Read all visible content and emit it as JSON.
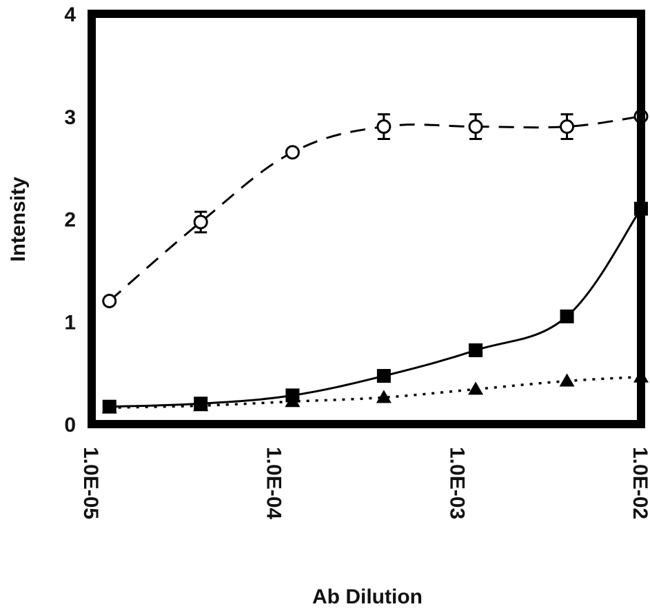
{
  "chart_data": {
    "type": "line",
    "xscale": "log",
    "xlabel": "Ab Dilution",
    "ylabel": "Intensity",
    "xlim": [
      1e-05,
      0.01
    ],
    "ylim": [
      0,
      4
    ],
    "x_ticks": [
      1e-05,
      0.0001,
      0.001,
      0.01
    ],
    "x_tick_labels": [
      "1.0E-05",
      "1.0E-04",
      "1.0E-03",
      "1.0E-02"
    ],
    "y_ticks": [
      0,
      1,
      2,
      3,
      4
    ],
    "y_tick_labels": [
      "0",
      "1",
      "2",
      "3",
      "4"
    ],
    "grid": false,
    "series": [
      {
        "marker": "open-circle",
        "line_style": "dashed",
        "color": "#000000",
        "x": [
          1.25e-05,
          3.94e-05,
          0.000125,
          0.000394,
          0.00125,
          0.00394,
          0.01
        ],
        "y": [
          1.2,
          1.97,
          2.65,
          2.9,
          2.9,
          2.9,
          3.0
        ],
        "error": [
          0,
          0.1,
          0,
          0.12,
          0.12,
          0.12,
          0
        ]
      },
      {
        "marker": "filled-square",
        "line_style": "solid",
        "color": "#000000",
        "x": [
          1.25e-05,
          3.94e-05,
          0.000125,
          0.000394,
          0.00125,
          0.00394,
          0.01
        ],
        "y": [
          0.17,
          0.2,
          0.28,
          0.47,
          0.72,
          1.05,
          2.1
        ]
      },
      {
        "marker": "filled-triangle",
        "line_style": "dotted",
        "color": "#000000",
        "x": [
          1.25e-05,
          3.94e-05,
          0.000125,
          0.000394,
          0.00125,
          0.00394,
          0.01
        ],
        "y": [
          0.16,
          0.18,
          0.22,
          0.26,
          0.34,
          0.42,
          0.46
        ]
      }
    ]
  }
}
